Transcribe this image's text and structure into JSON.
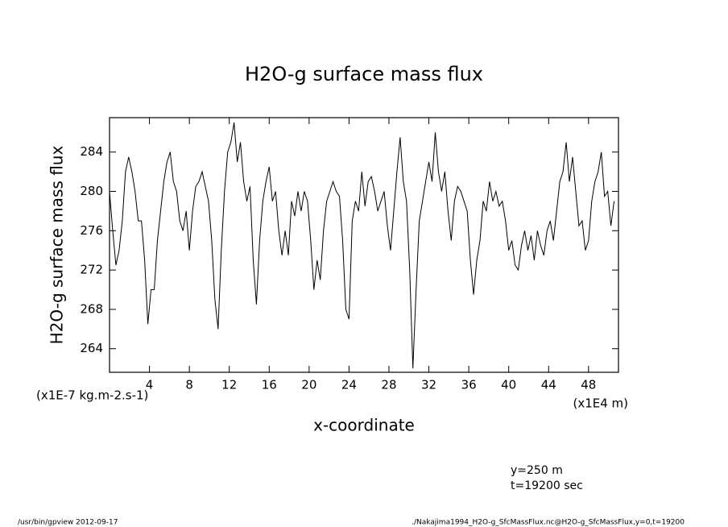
{
  "chart_data": {
    "type": "line",
    "title": "H2O-g surface mass flux",
    "ylabel": "H2O-g surface mass flux",
    "yunits": "(x1E-7 kg.m-2.s-1)",
    "xlabel": "x-coordinate",
    "xunits": "(x1E4 m)",
    "annotations": [
      "y=250 m",
      "t=19200 sec"
    ],
    "footer_left": "/usr/bin/gpview  2012-09-17",
    "footer_right": "./Nakajima1994_H2O-g_SfcMassFlux.nc@H2O-g_SfcMassFlux,y=0,t=19200",
    "color": "#000000",
    "x": [
      0,
      0.32,
      0.64,
      0.96,
      1.28,
      1.6,
      1.92,
      2.24,
      2.56,
      2.88,
      3.2,
      3.52,
      3.84,
      4.16,
      4.48,
      4.8,
      5.12,
      5.44,
      5.76,
      6.08,
      6.4,
      6.72,
      7.04,
      7.36,
      7.68,
      8,
      8.32,
      8.64,
      8.96,
      9.28,
      9.6,
      9.92,
      10.24,
      10.56,
      10.88,
      11.2,
      11.52,
      11.84,
      12.16,
      12.48,
      12.8,
      13.12,
      13.44,
      13.76,
      14.08,
      14.4,
      14.72,
      15.04,
      15.36,
      15.68,
      16,
      16.32,
      16.64,
      16.96,
      17.28,
      17.6,
      17.92,
      18.24,
      18.56,
      18.88,
      19.2,
      19.52,
      19.84,
      20.16,
      20.48,
      20.8,
      21.12,
      21.44,
      21.76,
      22.08,
      22.4,
      22.72,
      23.04,
      23.36,
      23.68,
      24,
      24.32,
      24.64,
      24.96,
      25.28,
      25.6,
      25.92,
      26.24,
      26.56,
      26.88,
      27.2,
      27.52,
      27.84,
      28.16,
      28.48,
      28.8,
      29.12,
      29.44,
      29.76,
      30.08,
      30.4,
      30.72,
      31.04,
      31.36,
      31.68,
      32,
      32.32,
      32.64,
      32.96,
      33.28,
      33.6,
      33.92,
      34.24,
      34.56,
      34.88,
      35.2,
      35.52,
      35.84,
      36.16,
      36.48,
      36.8,
      37.12,
      37.44,
      37.76,
      38.08,
      38.4,
      38.72,
      39.04,
      39.36,
      39.68,
      40,
      40.32,
      40.64,
      40.96,
      41.28,
      41.6,
      41.92,
      42.24,
      42.56,
      42.88,
      43.2,
      43.52,
      43.84,
      44.16,
      44.48,
      44.8,
      45.12,
      45.44,
      45.76,
      46.08,
      46.4,
      46.72,
      47.04,
      47.36,
      47.68,
      48,
      48.32,
      48.64,
      48.96,
      49.28,
      49.6,
      49.92,
      50.24,
      50.56
    ],
    "values": [
      280,
      276,
      272.5,
      274,
      277,
      282,
      283.5,
      282,
      280,
      277,
      277,
      273,
      266.5,
      270,
      270,
      275,
      278,
      281,
      283,
      284,
      281,
      280,
      277,
      276,
      278,
      274,
      278,
      280.5,
      281,
      282,
      280.5,
      279,
      275,
      269,
      266,
      274,
      280,
      284,
      285,
      287,
      283,
      285,
      281,
      279,
      280.5,
      273,
      268.5,
      275,
      279,
      281,
      282.5,
      279,
      280,
      276,
      273.5,
      276,
      273.5,
      279,
      277.5,
      280,
      278,
      280,
      279,
      275,
      270,
      273,
      271,
      276,
      279,
      280,
      281,
      280,
      279.5,
      275,
      268,
      267,
      277,
      279,
      278,
      282,
      278.5,
      281,
      281.5,
      280,
      278,
      279,
      280,
      276.5,
      274,
      278,
      282,
      285.5,
      281,
      279,
      272,
      262,
      270,
      277,
      279,
      281,
      283,
      281,
      286,
      282,
      280,
      282,
      278,
      275,
      279,
      280.5,
      280,
      279,
      278,
      273,
      269.5,
      273,
      275,
      279,
      278,
      281,
      279,
      280,
      278.5,
      279,
      277,
      274,
      275,
      272.5,
      272,
      274.5,
      276,
      274,
      275.5,
      273,
      276,
      274.5,
      273.5,
      276,
      277,
      275,
      278,
      281,
      282,
      285,
      281,
      283.5,
      280,
      276.5,
      277,
      274,
      275,
      279,
      281,
      282,
      284,
      279.5,
      280,
      276.5,
      279
    ],
    "xlim": [
      0,
      51
    ],
    "ylim": [
      261.6,
      287.5
    ],
    "xticks": [
      4,
      8,
      12,
      16,
      20,
      24,
      28,
      32,
      36,
      40,
      44,
      48
    ],
    "yticks": [
      264,
      268,
      272,
      276,
      280,
      284
    ]
  }
}
